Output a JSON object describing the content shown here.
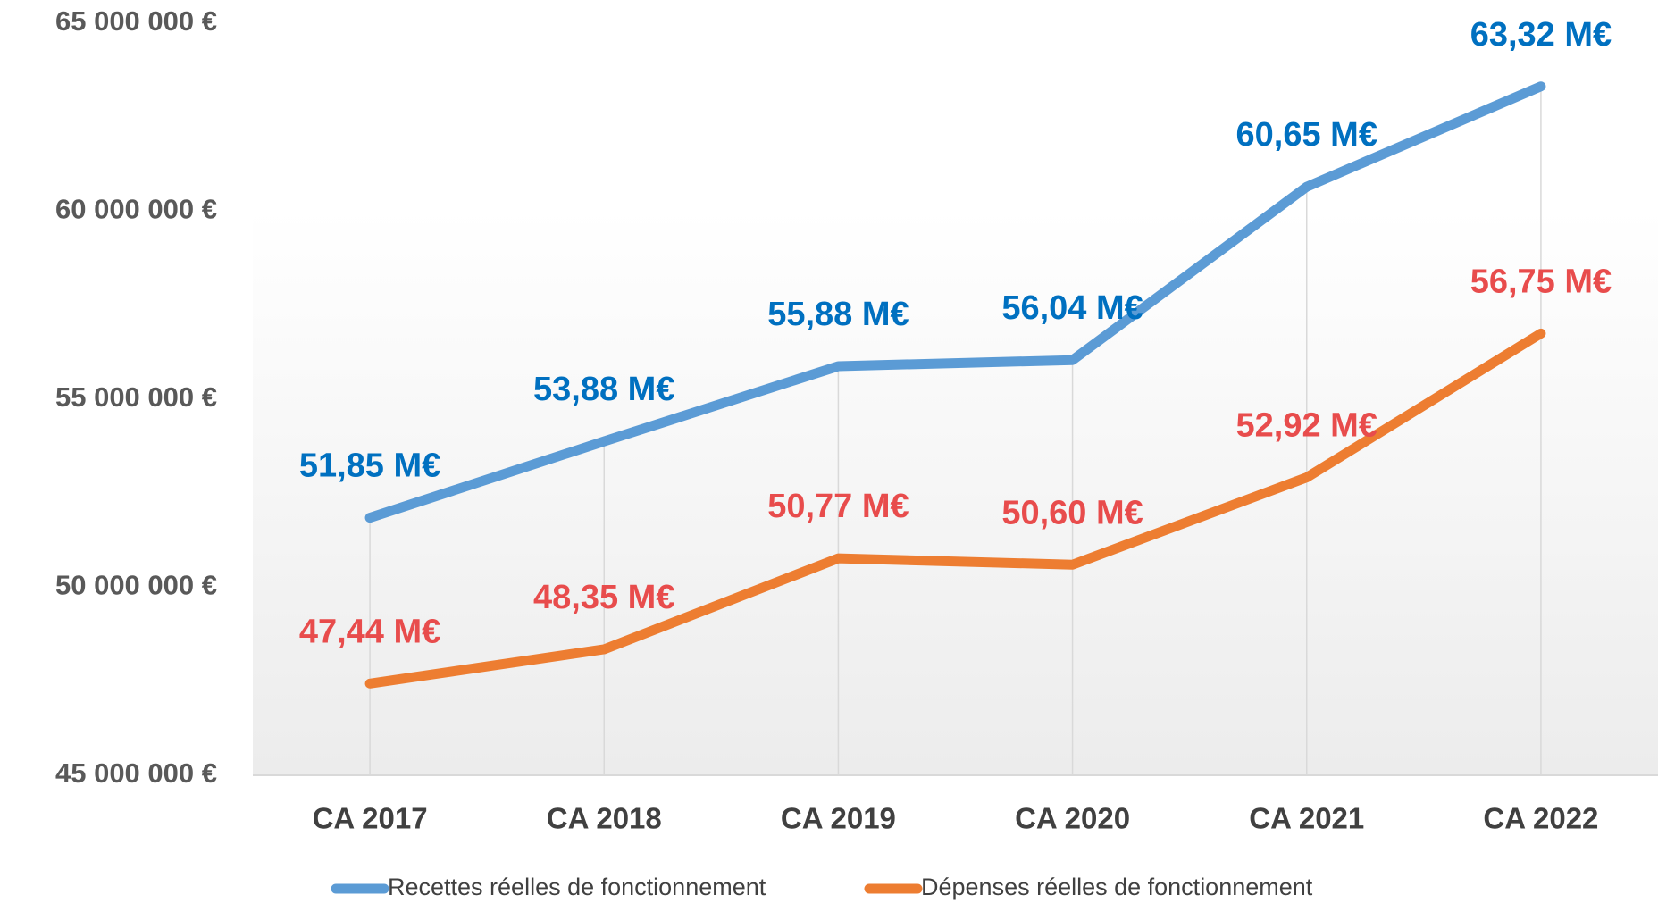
{
  "chart_data": {
    "type": "line",
    "categories": [
      "CA 2017",
      "CA 2018",
      "CA 2019",
      "CA 2020",
      "CA 2021",
      "CA 2022"
    ],
    "series": [
      {
        "name": "Recettes réelles de fonctionnement",
        "color": "#5b9bd5",
        "label_color": "#0070c0",
        "values": [
          51850000,
          53880000,
          55880000,
          56040000,
          60650000,
          63320000
        ],
        "value_labels": [
          "51,85 M€",
          "53,88 M€",
          "55,88 M€",
          "56,04 M€",
          "60,65 M€",
          "63,32 M€"
        ]
      },
      {
        "name": "Dépenses réelles de fonctionnement",
        "color": "#ed7d31",
        "label_color": "#e84c4c",
        "values": [
          47440000,
          48350000,
          50770000,
          50600000,
          52920000,
          56750000
        ],
        "value_labels": [
          "47,44 M€",
          "48,35 M€",
          "50,77 M€",
          "50,60 M€",
          "52,92 M€",
          "56,75 M€"
        ]
      }
    ],
    "ylim": [
      45000000,
      65000000
    ],
    "yticks": [
      {
        "value": 45000000,
        "label": "45 000 000 €"
      },
      {
        "value": 50000000,
        "label": "50 000 000 €"
      },
      {
        "value": 55000000,
        "label": "55 000 000 €"
      },
      {
        "value": 60000000,
        "label": "60 000 000 €"
      },
      {
        "value": 65000000,
        "label": "65 000 000 €"
      }
    ],
    "legend": "bottom"
  }
}
